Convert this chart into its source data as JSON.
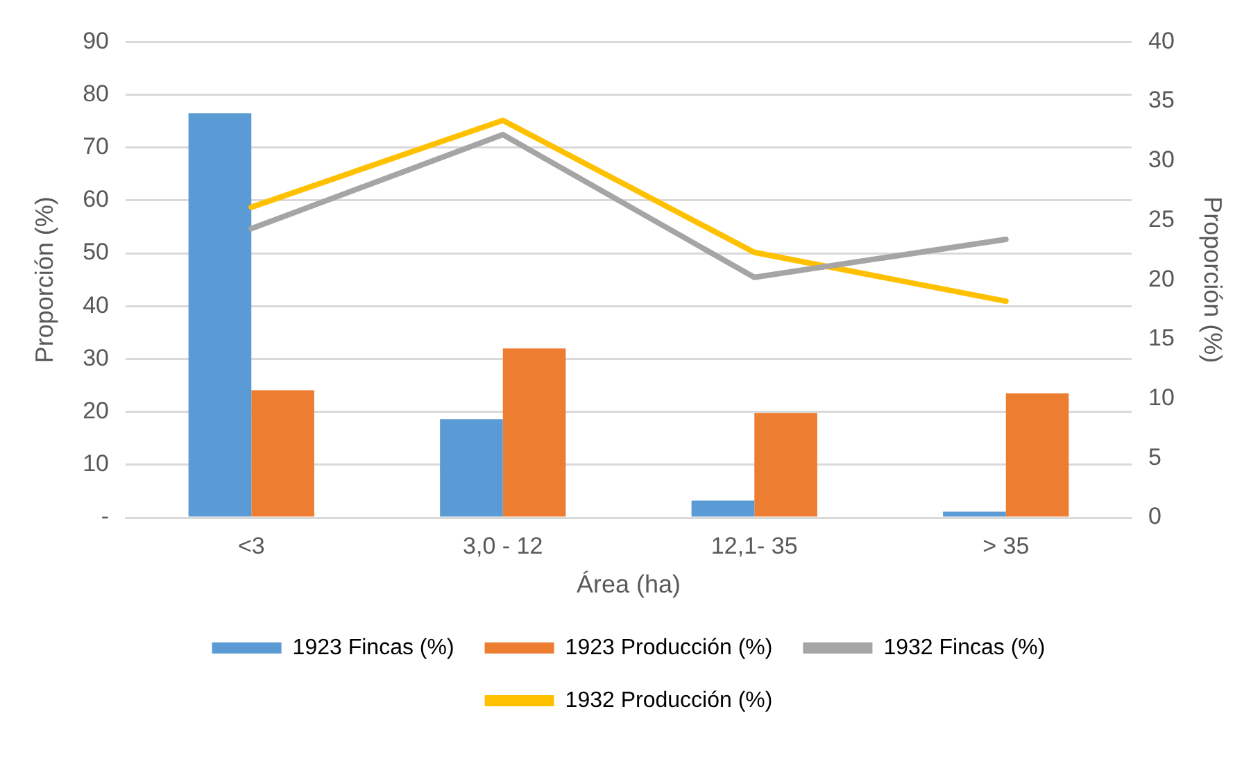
{
  "chart_data": {
    "type": "bar",
    "xlabel": "Área (ha)",
    "ylabel": "Proporción (%)",
    "y2label": "Proporción (%)",
    "categories": [
      "<3",
      "3,0 - 12",
      "12,1- 35",
      "> 35"
    ],
    "series": [
      {
        "name": "1923 Fincas (%)",
        "color": "#5b9bd5",
        "values": [
          76.5,
          18.6,
          3.2,
          1.1
        ]
      },
      {
        "name": "1923 Producción (%)",
        "color": "#ed7d31",
        "values": [
          24.1,
          32.0,
          19.8,
          23.5
        ]
      },
      {
        "name": "1932 Fincas (%)",
        "type": "line",
        "axis": "y2",
        "color": "#a5a5a5",
        "values": [
          24.3,
          32.2,
          20.2,
          23.4
        ]
      },
      {
        "name": "1932 Producción (%)",
        "type": "line",
        "axis": "y2",
        "color": "#ffc000",
        "values": [
          26.1,
          33.4,
          22.3,
          18.2
        ]
      }
    ],
    "ylim": [
      0,
      90
    ],
    "yticks": [
      {
        "value": 0,
        "label": "-"
      },
      10,
      20,
      30,
      40,
      50,
      60,
      70,
      80,
      90
    ],
    "y2lim": [
      0,
      40
    ],
    "y2ticks": [
      0,
      5,
      10,
      15,
      20,
      25,
      30,
      35,
      40
    ],
    "grid": "y",
    "legend": "bottom",
    "marker": "none"
  }
}
